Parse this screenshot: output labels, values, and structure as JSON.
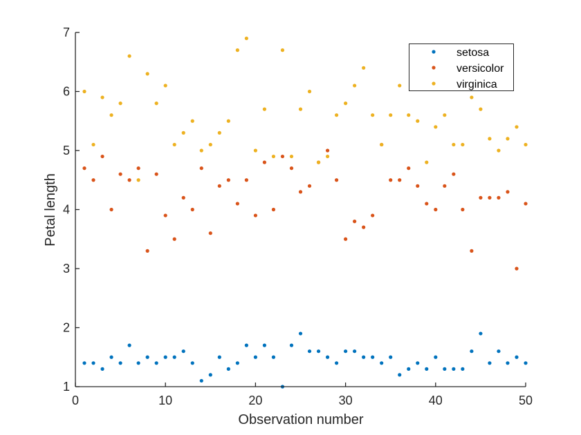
{
  "chart_data": {
    "type": "scatter",
    "title": "",
    "xlabel": "Observation number",
    "ylabel": "Petal length",
    "xlim": [
      0,
      50
    ],
    "ylim": [
      1,
      7
    ],
    "xticks": [
      0,
      10,
      20,
      30,
      40,
      50
    ],
    "yticks": [
      1,
      2,
      3,
      4,
      5,
      6,
      7
    ],
    "xtick_labels": [
      "0",
      "10",
      "20",
      "30",
      "40",
      "50"
    ],
    "ytick_labels": [
      "1",
      "2",
      "3",
      "4",
      "5",
      "6",
      "7"
    ],
    "grid": false,
    "legend_position": "top-right",
    "x": [
      1,
      2,
      3,
      4,
      5,
      6,
      7,
      8,
      9,
      10,
      11,
      12,
      13,
      14,
      15,
      16,
      17,
      18,
      19,
      20,
      21,
      22,
      23,
      24,
      25,
      26,
      27,
      28,
      29,
      30,
      31,
      32,
      33,
      34,
      35,
      36,
      37,
      38,
      39,
      40,
      41,
      42,
      43,
      44,
      45,
      46,
      47,
      48,
      49,
      50
    ],
    "series": [
      {
        "name": "setosa",
        "color": "#0072BD",
        "values": [
          1.4,
          1.4,
          1.3,
          1.5,
          1.4,
          1.7,
          1.4,
          1.5,
          1.4,
          1.5,
          1.5,
          1.6,
          1.4,
          1.1,
          1.2,
          1.5,
          1.3,
          1.4,
          1.7,
          1.5,
          1.7,
          1.5,
          1.0,
          1.7,
          1.9,
          1.6,
          1.6,
          1.5,
          1.4,
          1.6,
          1.6,
          1.5,
          1.5,
          1.4,
          1.5,
          1.2,
          1.3,
          1.4,
          1.3,
          1.5,
          1.3,
          1.3,
          1.3,
          1.6,
          1.9,
          1.4,
          1.6,
          1.4,
          1.5,
          1.4
        ]
      },
      {
        "name": "versicolor",
        "color": "#D95319",
        "values": [
          4.7,
          4.5,
          4.9,
          4.0,
          4.6,
          4.5,
          4.7,
          3.3,
          4.6,
          3.9,
          3.5,
          4.2,
          4.0,
          4.7,
          3.6,
          4.4,
          4.5,
          4.1,
          4.5,
          3.9,
          4.8,
          4.0,
          4.9,
          4.7,
          4.3,
          4.4,
          4.8,
          5.0,
          4.5,
          3.5,
          3.8,
          3.7,
          3.9,
          5.1,
          4.5,
          4.5,
          4.7,
          4.4,
          4.1,
          4.0,
          4.4,
          4.6,
          4.0,
          3.3,
          4.2,
          4.2,
          4.2,
          4.3,
          3.0,
          4.1
        ]
      },
      {
        "name": "virginica",
        "color": "#EDB120",
        "values": [
          6.0,
          5.1,
          5.9,
          5.6,
          5.8,
          6.6,
          4.5,
          6.3,
          5.8,
          6.1,
          5.1,
          5.3,
          5.5,
          5.0,
          5.1,
          5.3,
          5.5,
          6.7,
          6.9,
          5.0,
          5.7,
          4.9,
          6.7,
          4.9,
          5.7,
          6.0,
          4.8,
          4.9,
          5.6,
          5.8,
          6.1,
          6.4,
          5.6,
          5.1,
          5.6,
          6.1,
          5.6,
          5.5,
          4.8,
          5.4,
          5.6,
          5.1,
          5.1,
          5.9,
          5.7,
          5.2,
          5.0,
          5.2,
          5.4,
          5.1
        ]
      }
    ]
  }
}
